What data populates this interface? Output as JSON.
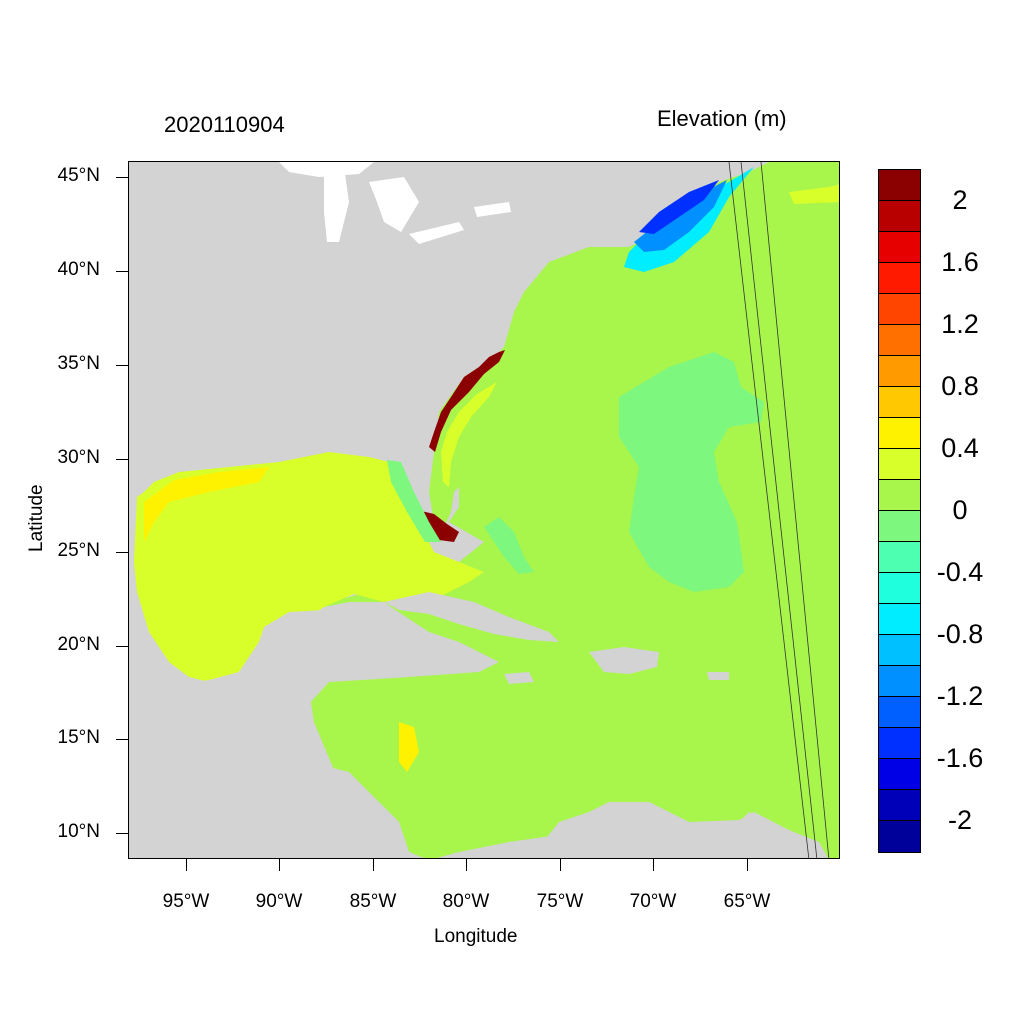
{
  "title": {
    "date": "2020110904",
    "variable": "Elevation (m)"
  },
  "axes": {
    "x_title": "Longitude",
    "y_title": "Latitude",
    "lat_ticks": [
      "45°N",
      "40°N",
      "35°N",
      "30°N",
      "25°N",
      "20°N",
      "15°N",
      "10°N"
    ],
    "lon_ticks": [
      "95°W",
      "90°W",
      "85°W",
      "80°W",
      "75°W",
      "70°W",
      "65°W"
    ]
  },
  "colorbar": {
    "labels": [
      "2",
      "1.6",
      "1.2",
      "0.8",
      "0.4",
      "0",
      "-0.4",
      "-0.8",
      "-1.2",
      "-1.6",
      "-2"
    ],
    "colors": [
      "#8b0000",
      "#b80000",
      "#e60000",
      "#ff1a00",
      "#ff4500",
      "#ff7000",
      "#ff9a00",
      "#ffc800",
      "#fff200",
      "#d8ff2a",
      "#a8f54c",
      "#7df77d",
      "#4dffb0",
      "#20ffdd",
      "#00ecff",
      "#00c0ff",
      "#0090ff",
      "#0060ff",
      "#0030ff",
      "#0000e6",
      "#0000b8",
      "#00009a"
    ]
  },
  "map": {
    "land_color": "#d3d3d3",
    "ocean_color": "#a8f54c",
    "gulf_color": "#d8ff2a",
    "negative_color": "#7df77d",
    "surge_color": "#8b0000",
    "low_color": "#0030ff"
  }
}
